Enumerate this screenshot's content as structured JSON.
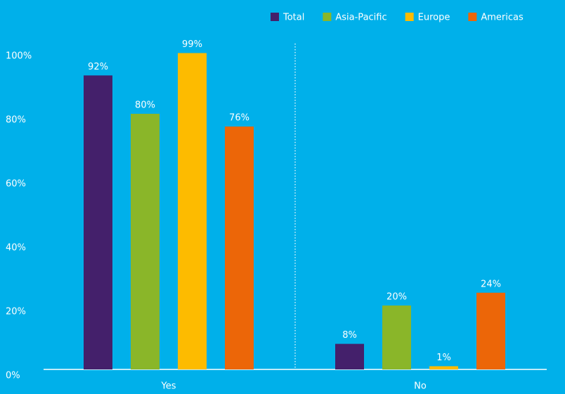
{
  "chart_data": {
    "type": "bar",
    "categories": [
      "Yes",
      "No"
    ],
    "series": [
      {
        "name": "Total",
        "color": "#44206b",
        "values": [
          92,
          8
        ],
        "value_labels": [
          "92%",
          "8%"
        ]
      },
      {
        "name": "Asia-Pacific",
        "color": "#8ab629",
        "values": [
          80,
          20
        ],
        "value_labels": [
          "80%",
          "20%"
        ]
      },
      {
        "name": "Europe",
        "color": "#fdbb00",
        "values": [
          99,
          1
        ],
        "value_labels": [
          "99%",
          "1%"
        ]
      },
      {
        "name": "Americas",
        "color": "#ec6608",
        "values": [
          76,
          24
        ],
        "value_labels": [
          "76%",
          "24%"
        ]
      }
    ],
    "ylim": [
      0,
      100
    ],
    "yticks": [
      {
        "value": 0,
        "label": "0%"
      },
      {
        "value": 20,
        "label": "20%"
      },
      {
        "value": 40,
        "label": "40%"
      },
      {
        "value": 60,
        "label": "60%"
      },
      {
        "value": 80,
        "label": "80%"
      },
      {
        "value": 100,
        "label": "100%"
      }
    ],
    "grid": false,
    "legend": "top-right"
  }
}
